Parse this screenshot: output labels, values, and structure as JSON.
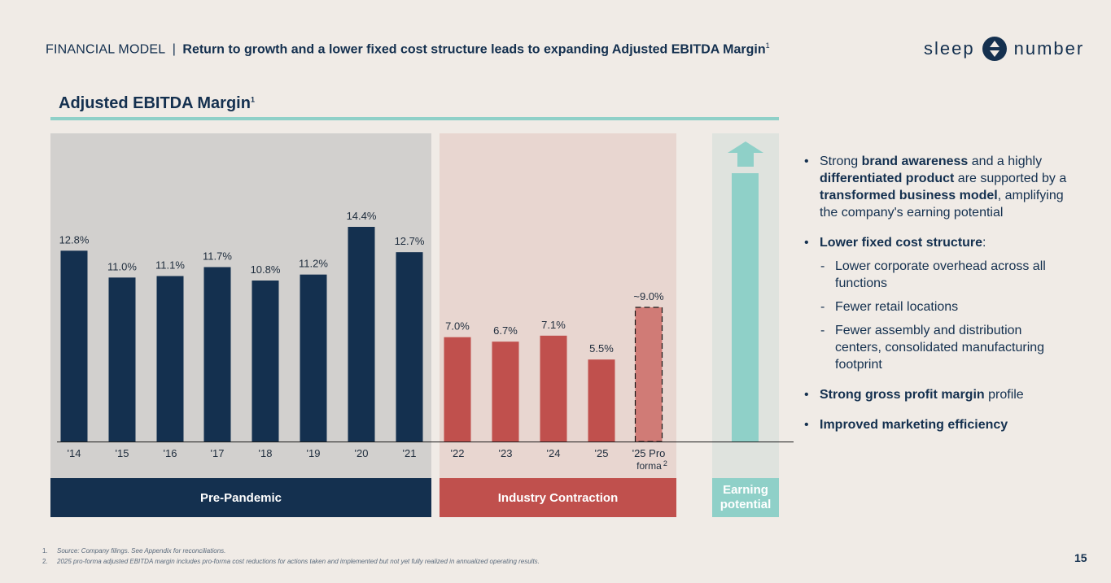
{
  "header": {
    "section": "FINANCIAL MODEL",
    "separator": "|",
    "title": "Return to growth and a lower fixed cost structure leads to expanding Adjusted EBITDA Margin",
    "title_sup": "1"
  },
  "logo": {
    "left": "sleep",
    "right": "number"
  },
  "colors": {
    "navy": "#14304f",
    "red": "#c0504d",
    "red_light": "#d07b76",
    "teal": "#8fd0c8",
    "grey_bg": "#d2d0ce",
    "pink_bg": "#e8d6d0",
    "teal_bg": "#dfe3de"
  },
  "chart_data": {
    "type": "bar",
    "title": "Adjusted EBITDA Margin",
    "title_sup": "1",
    "categories": [
      "'14",
      "'15",
      "'16",
      "'17",
      "'18",
      "'19",
      "'20",
      "'21",
      "'22",
      "'23",
      "'24",
      "'25",
      "'25 Pro forma"
    ],
    "category_sup_last": "2",
    "values": [
      12.8,
      11.0,
      11.1,
      11.7,
      10.8,
      11.2,
      14.4,
      12.7,
      7.0,
      6.7,
      7.1,
      5.5,
      9.0
    ],
    "value_labels": [
      "12.8%",
      "11.0%",
      "11.1%",
      "11.7%",
      "10.8%",
      "11.2%",
      "14.4%",
      "12.7%",
      "7.0%",
      "6.7%",
      "7.1%",
      "5.5%",
      "~9.0%"
    ],
    "groups": [
      {
        "name": "Pre-Pandemic",
        "categories": [
          "'14",
          "'15",
          "'16",
          "'17",
          "'18",
          "'19",
          "'20",
          "'21"
        ]
      },
      {
        "name": "Industry Contraction",
        "categories": [
          "'22",
          "'23",
          "'24",
          "'25",
          "'25 Pro forma"
        ]
      }
    ],
    "extra_panel": {
      "name": "Earning potential"
    },
    "ylim": [
      0,
      16
    ],
    "grid": false,
    "legend": "none"
  },
  "bullets": [
    {
      "segments": [
        {
          "text": "Strong ",
          "bold": false
        },
        {
          "text": "brand awareness",
          "bold": true
        },
        {
          "text": " and a highly ",
          "bold": false
        },
        {
          "text": "differentiated product",
          "bold": true
        },
        {
          "text": " are supported by a ",
          "bold": false
        },
        {
          "text": "transformed business model",
          "bold": true
        },
        {
          "text": ", amplifying the company's earning potential",
          "bold": false
        }
      ],
      "subs": []
    },
    {
      "segments": [
        {
          "text": "Lower fixed cost structure",
          "bold": true
        },
        {
          "text": ":",
          "bold": false
        }
      ],
      "subs": [
        "Lower corporate overhead across all functions",
        "Fewer retail locations",
        "Fewer assembly and distribution centers, consolidated manufacturing footprint"
      ]
    },
    {
      "segments": [
        {
          "text": "Strong gross profit margin",
          "bold": true
        },
        {
          "text": " profile",
          "bold": false
        }
      ],
      "subs": []
    },
    {
      "segments": [
        {
          "text": "Improved marketing efficiency",
          "bold": true
        }
      ],
      "subs": []
    }
  ],
  "footnotes": [
    {
      "num": "1.",
      "text": "Source: Company filings. See Appendix for reconciliations."
    },
    {
      "num": "2.",
      "text": "2025 pro-forma adjusted EBITDA margin includes pro-forma cost reductions for actions taken and implemented but not yet fully realized in annualized operating results."
    }
  ],
  "page_number": "15"
}
